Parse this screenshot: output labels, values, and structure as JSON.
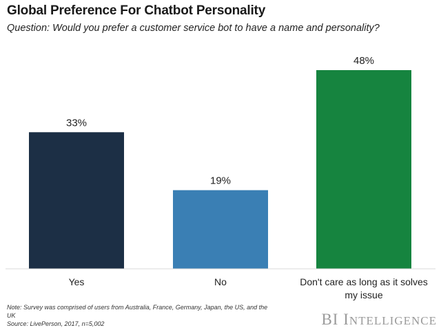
{
  "header": {
    "title": "Global Preference For Chatbot Personality",
    "subtitle": "Question: Would you prefer a customer service bot to have a name and personality?"
  },
  "chart_data": {
    "type": "bar",
    "categories": [
      "Yes",
      "No",
      "Don't care as long as it solves my issue"
    ],
    "category_lines": [
      [
        "Yes"
      ],
      [
        "No"
      ],
      [
        "Don't care as long as it solves",
        "my issue"
      ]
    ],
    "values": [
      33,
      19,
      48
    ],
    "value_labels": [
      "33%",
      "19%",
      "48%"
    ],
    "colors": [
      "#1c2f45",
      "#3a7fb4",
      "#16843f"
    ],
    "ylim": [
      0,
      48
    ],
    "grid": false,
    "legend": "none"
  },
  "footer": {
    "note": "Note: Survey was comprised of users from Australia, France, Germany, Japan, the US, and the UK",
    "source": "Source: LivePerson, 2017, n=5,002",
    "brand_lead": "BI",
    "brand_cap": "I",
    "brand_rest": "NTELLIGENCE"
  }
}
